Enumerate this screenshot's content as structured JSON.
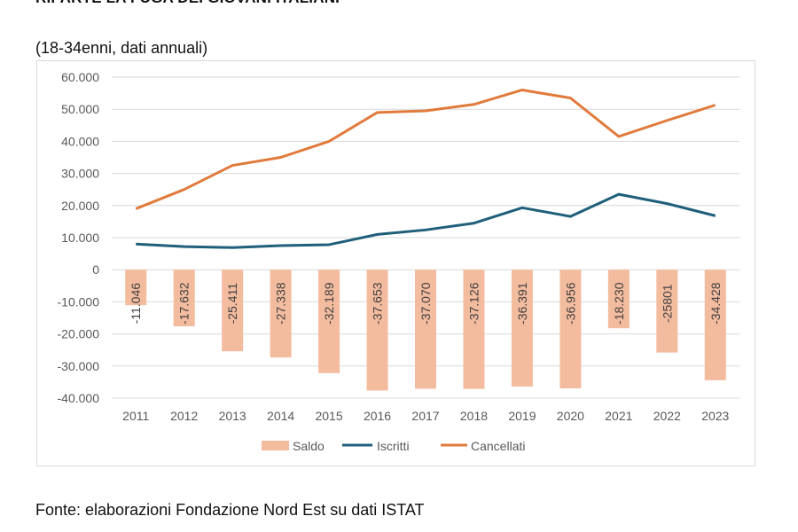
{
  "title": "RIPARTE LA FUGA DEI GIOVANI ITALIANI",
  "subtitle": "(18-34enni, dati annuali)",
  "source": "Fonte: elaborazioni Fondazione Nord Est su dati ISTAT",
  "chart_data": {
    "type": "bar+line",
    "categories": [
      "2011",
      "2012",
      "2013",
      "2014",
      "2015",
      "2016",
      "2017",
      "2018",
      "2019",
      "2020",
      "2021",
      "2022",
      "2023"
    ],
    "series": [
      {
        "name": "Saldo",
        "type": "bar",
        "color": "#f4bc9f",
        "values": [
          -11046,
          -17632,
          -25411,
          -27338,
          -32189,
          -37653,
          -37070,
          -37126,
          -36391,
          -36956,
          -18230,
          -25801,
          -34428
        ],
        "labels": [
          "-11.046",
          "-17.632",
          "-25.411",
          "-27.338",
          "-32.189",
          "-37.653",
          "-37.070",
          "-37.126",
          "-36.391",
          "-36.956",
          "-18.230",
          "-25801",
          "-34.428"
        ]
      },
      {
        "name": "Iscritti",
        "type": "line",
        "color": "#1f5f7a",
        "values": [
          8000,
          7200,
          6900,
          7500,
          7800,
          11000,
          12400,
          14500,
          19300,
          16600,
          23500,
          20600,
          16800
        ]
      },
      {
        "name": "Cancellati",
        "type": "line",
        "color": "#e07b3c",
        "values": [
          19000,
          25000,
          32500,
          35000,
          40000,
          49000,
          49500,
          51500,
          56000,
          53500,
          41500,
          46500,
          51300
        ]
      }
    ],
    "ylim": [
      -40000,
      60000
    ],
    "yticks": [
      60000,
      50000,
      40000,
      30000,
      20000,
      10000,
      0,
      -10000,
      -20000,
      -30000,
      -40000
    ],
    "ytick_labels": [
      "60.000",
      "50.000",
      "40.000",
      "30.000",
      "20.000",
      "10.000",
      "0",
      "-10.000",
      "-20.000",
      "-30.000",
      "-40.000"
    ],
    "grid": true,
    "legend": "bottom"
  }
}
